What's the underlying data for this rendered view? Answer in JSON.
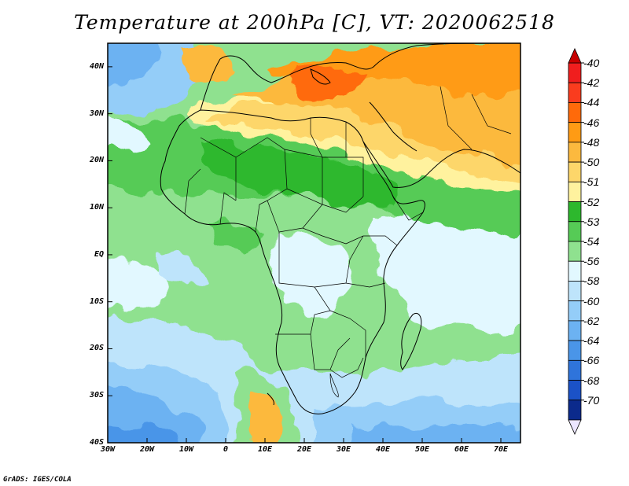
{
  "title": "Temperature at 200hPa [C], VT: 2020062518",
  "credit": "GrADS: IGES/COLA",
  "map": {
    "projection": "lat-lon",
    "lon_range": [
      -30,
      75
    ],
    "lat_range": [
      -40,
      45
    ],
    "lat_labels": [
      "40N",
      "30N",
      "20N",
      "10N",
      "EQ",
      "10S",
      "20S",
      "30S",
      "40S"
    ],
    "lon_labels": [
      "30W",
      "20W",
      "10W",
      "0",
      "10E",
      "20E",
      "30E",
      "40E",
      "50E",
      "60E",
      "70E"
    ]
  },
  "colorbar": {
    "labels": [
      "-40",
      "-42",
      "-44",
      "-46",
      "-48",
      "-50",
      "-51",
      "-52",
      "-53",
      "-54",
      "-56",
      "-58",
      "-60",
      "-62",
      "-64",
      "-66",
      "-68",
      "-70"
    ],
    "colors": [
      "#f01e1e",
      "#fa3c1e",
      "#ff6a0a",
      "#ff9b14",
      "#fcb93e",
      "#fdd66a",
      "#fff29e",
      "#2db82d",
      "#56cb56",
      "#8fe18f",
      "#e2f8ff",
      "#bee4fb",
      "#94cdf8",
      "#6cb2f2",
      "#4a95e8",
      "#2f74db",
      "#1b52c7",
      "#0b2a8c"
    ]
  }
}
